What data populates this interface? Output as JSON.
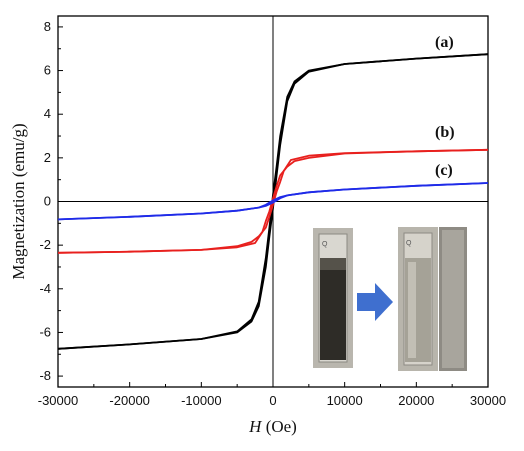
{
  "chart_data": {
    "type": "line",
    "xlabel_italic": "H",
    "xlabel_unit": " (Oe)",
    "ylabel": "Magnetization (emu/g)",
    "xlim": [
      -30000,
      30000
    ],
    "ylim": [
      -8.5,
      8.5
    ],
    "xticks": [
      -30000,
      -20000,
      -10000,
      0,
      10000,
      20000,
      30000
    ],
    "yticks": [
      -8,
      -6,
      -4,
      -2,
      0,
      2,
      4,
      6,
      8
    ],
    "grid": false,
    "series": [
      {
        "label": "(a)",
        "color": "#000000",
        "descending": [
          [
            30000,
            6.75
          ],
          [
            20000,
            6.55
          ],
          [
            10000,
            6.3
          ],
          [
            5000,
            6.0
          ],
          [
            3000,
            5.5
          ],
          [
            2000,
            4.8
          ],
          [
            1000,
            3.0
          ],
          [
            500,
            1.6
          ],
          [
            0,
            0.3
          ],
          [
            -500,
            -1.2
          ],
          [
            -1000,
            -2.6
          ],
          [
            -2000,
            -4.6
          ],
          [
            -3000,
            -5.4
          ],
          [
            -5000,
            -5.95
          ],
          [
            -10000,
            -6.3
          ],
          [
            -20000,
            -6.55
          ],
          [
            -30000,
            -6.75
          ]
        ],
        "ascending": [
          [
            -30000,
            -6.75
          ],
          [
            -20000,
            -6.55
          ],
          [
            -10000,
            -6.3
          ],
          [
            -5000,
            -6.0
          ],
          [
            -3000,
            -5.5
          ],
          [
            -2000,
            -4.8
          ],
          [
            -1000,
            -3.0
          ],
          [
            -500,
            -1.6
          ],
          [
            0,
            -0.3
          ],
          [
            500,
            1.2
          ],
          [
            1000,
            2.6
          ],
          [
            2000,
            4.6
          ],
          [
            3000,
            5.4
          ],
          [
            5000,
            5.95
          ],
          [
            10000,
            6.3
          ],
          [
            20000,
            6.55
          ],
          [
            30000,
            6.75
          ]
        ]
      },
      {
        "label": "(b)",
        "color": "#e8201e",
        "descending": [
          [
            30000,
            2.37
          ],
          [
            20000,
            2.3
          ],
          [
            10000,
            2.2
          ],
          [
            5000,
            2.0
          ],
          [
            3000,
            1.85
          ],
          [
            2000,
            1.6
          ],
          [
            1000,
            1.2
          ],
          [
            500,
            0.7
          ],
          [
            0,
            0.15
          ],
          [
            -500,
            -0.45
          ],
          [
            -1000,
            -0.9
          ],
          [
            -1500,
            -1.4
          ],
          [
            -2500,
            -1.9
          ],
          [
            -5000,
            -2.1
          ],
          [
            -10000,
            -2.22
          ],
          [
            -20000,
            -2.3
          ],
          [
            -30000,
            -2.35
          ]
        ],
        "ascending": [
          [
            -30000,
            -2.35
          ],
          [
            -20000,
            -2.3
          ],
          [
            -10000,
            -2.22
          ],
          [
            -5000,
            -2.05
          ],
          [
            -3000,
            -1.85
          ],
          [
            -2000,
            -1.6
          ],
          [
            -1000,
            -1.2
          ],
          [
            -500,
            -0.7
          ],
          [
            0,
            -0.15
          ],
          [
            500,
            0.45
          ],
          [
            1000,
            0.9
          ],
          [
            1500,
            1.4
          ],
          [
            2500,
            1.9
          ],
          [
            5000,
            2.1
          ],
          [
            10000,
            2.22
          ],
          [
            20000,
            2.3
          ],
          [
            30000,
            2.37
          ]
        ]
      },
      {
        "label": "(c)",
        "color": "#1f2be8",
        "descending": [
          [
            30000,
            0.85
          ],
          [
            20000,
            0.72
          ],
          [
            10000,
            0.55
          ],
          [
            5000,
            0.42
          ],
          [
            2000,
            0.28
          ],
          [
            1000,
            0.2
          ],
          [
            0,
            0.05
          ],
          [
            -1000,
            -0.15
          ],
          [
            -2000,
            -0.28
          ],
          [
            -5000,
            -0.42
          ],
          [
            -10000,
            -0.55
          ],
          [
            -20000,
            -0.7
          ],
          [
            -30000,
            -0.82
          ]
        ],
        "ascending": [
          [
            -30000,
            -0.82
          ],
          [
            -20000,
            -0.7
          ],
          [
            -10000,
            -0.55
          ],
          [
            -5000,
            -0.42
          ],
          [
            -2000,
            -0.28
          ],
          [
            -1000,
            -0.2
          ],
          [
            0,
            -0.05
          ],
          [
            1000,
            0.15
          ],
          [
            2000,
            0.28
          ],
          [
            5000,
            0.42
          ],
          [
            10000,
            0.55
          ],
          [
            20000,
            0.72
          ],
          [
            30000,
            0.85
          ]
        ]
      }
    ],
    "inset_photo": {
      "description_icons": [
        "vial-dark-icon",
        "right-arrow-icon",
        "vial-clear-icon",
        "magnet-icon"
      ],
      "arrow_color": "#3f6fcf"
    }
  }
}
